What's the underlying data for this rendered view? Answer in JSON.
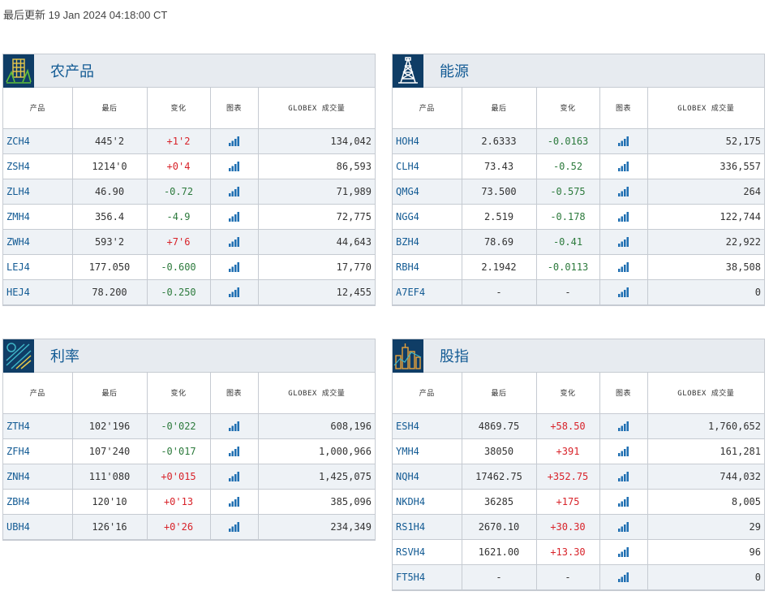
{
  "last_updated": "最后更新 19 Jan 2024 04:18:00 CT",
  "columns": [
    "产品",
    "最后",
    "变化",
    "图表",
    "GLOBEX 成交量"
  ],
  "colors": {
    "positive": "#d8232a",
    "negative": "#2c7a3c",
    "symbol": "#135b94",
    "chart_icon": "#1f6fb2"
  },
  "panels": [
    {
      "title": "农产品",
      "icon": "wheat-field-icon",
      "rows": [
        {
          "sym": "ZCH4",
          "last": "445'2",
          "chg": "+1'2",
          "dir": "pos",
          "vol": "134,042"
        },
        {
          "sym": "ZSH4",
          "last": "1214'0",
          "chg": "+0'4",
          "dir": "pos",
          "vol": "86,593"
        },
        {
          "sym": "ZLH4",
          "last": "46.90",
          "chg": "-0.72",
          "dir": "neg",
          "vol": "71,989"
        },
        {
          "sym": "ZMH4",
          "last": "356.4",
          "chg": "-4.9",
          "dir": "neg",
          "vol": "72,775"
        },
        {
          "sym": "ZWH4",
          "last": "593'2",
          "chg": "+7'6",
          "dir": "pos",
          "vol": "44,643"
        },
        {
          "sym": "LEJ4",
          "last": "177.050",
          "chg": "-0.600",
          "dir": "neg",
          "vol": "17,770"
        },
        {
          "sym": "HEJ4",
          "last": "78.200",
          "chg": "-0.250",
          "dir": "neg",
          "vol": "12,455"
        }
      ]
    },
    {
      "title": "能源",
      "icon": "oil-derrick-icon",
      "rows": [
        {
          "sym": "HOH4",
          "last": "2.6333",
          "chg": "-0.0163",
          "dir": "neg",
          "vol": "52,175"
        },
        {
          "sym": "CLH4",
          "last": "73.43",
          "chg": "-0.52",
          "dir": "neg",
          "vol": "336,557"
        },
        {
          "sym": "QMG4",
          "last": "73.500",
          "chg": "-0.575",
          "dir": "neg",
          "vol": "264"
        },
        {
          "sym": "NGG4",
          "last": "2.519",
          "chg": "-0.178",
          "dir": "neg",
          "vol": "122,744"
        },
        {
          "sym": "BZH4",
          "last": "78.69",
          "chg": "-0.41",
          "dir": "neg",
          "vol": "22,922"
        },
        {
          "sym": "RBH4",
          "last": "2.1942",
          "chg": "-0.0113",
          "dir": "neg",
          "vol": "38,508"
        },
        {
          "sym": "A7EF4",
          "last": "-",
          "chg": "-",
          "dir": "neu",
          "vol": "0"
        }
      ]
    },
    {
      "title": "利率",
      "icon": "interest-rate-icon",
      "rows": [
        {
          "sym": "ZTH4",
          "last": "102'196",
          "chg": "-0'022",
          "dir": "neg",
          "vol": "608,196"
        },
        {
          "sym": "ZFH4",
          "last": "107'240",
          "chg": "-0'017",
          "dir": "neg",
          "vol": "1,000,966"
        },
        {
          "sym": "ZNH4",
          "last": "111'080",
          "chg": "+0'015",
          "dir": "pos",
          "vol": "1,425,075"
        },
        {
          "sym": "ZBH4",
          "last": "120'10",
          "chg": "+0'13",
          "dir": "pos",
          "vol": "385,096"
        },
        {
          "sym": "UBH4",
          "last": "126'16",
          "chg": "+0'26",
          "dir": "pos",
          "vol": "234,349"
        }
      ]
    },
    {
      "title": "股指",
      "icon": "city-skyline-icon",
      "rows": [
        {
          "sym": "ESH4",
          "last": "4869.75",
          "chg": "+58.50",
          "dir": "pos",
          "vol": "1,760,652"
        },
        {
          "sym": "YMH4",
          "last": "38050",
          "chg": "+391",
          "dir": "pos",
          "vol": "161,281"
        },
        {
          "sym": "NQH4",
          "last": "17462.75",
          "chg": "+352.75",
          "dir": "pos",
          "vol": "744,032"
        },
        {
          "sym": "NKDH4",
          "last": "36285",
          "chg": "+175",
          "dir": "pos",
          "vol": "8,005"
        },
        {
          "sym": "RS1H4",
          "last": "2670.10",
          "chg": "+30.30",
          "dir": "pos",
          "vol": "29"
        },
        {
          "sym": "RSVH4",
          "last": "1621.00",
          "chg": "+13.30",
          "dir": "pos",
          "vol": "96"
        },
        {
          "sym": "FT5H4",
          "last": "-",
          "chg": "-",
          "dir": "neu",
          "vol": "0"
        }
      ]
    }
  ]
}
